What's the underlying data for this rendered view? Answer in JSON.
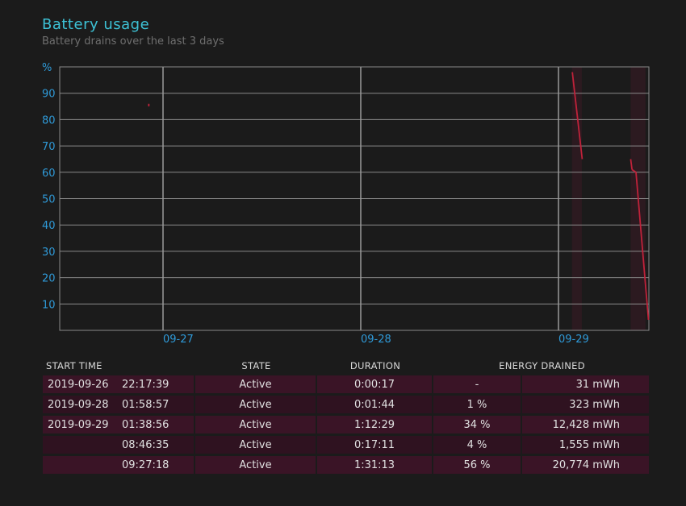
{
  "header": {
    "title": "Battery usage",
    "subtitle": "Battery drains over the last 3 days"
  },
  "chart_data": {
    "type": "line",
    "ylabel": "%",
    "yticks": [
      10,
      20,
      30,
      40,
      50,
      60,
      70,
      80,
      90
    ],
    "ylim": [
      0,
      100
    ],
    "xticks": [
      "09-27",
      "09-28",
      "09-29"
    ],
    "grid": true,
    "series_color": "#c0223a",
    "active_band_color": "#2c1a20",
    "segments": [
      {
        "start_day": -0.072,
        "end_day": -0.072,
        "values": [
          86,
          85
        ]
      },
      {
        "start_day": 2.07,
        "end_day": 2.12,
        "values": [
          98,
          65
        ]
      },
      {
        "start_day": 2.365,
        "end_day": 2.372,
        "values": [
          65,
          61
        ]
      },
      {
        "start_day": 2.372,
        "end_day": 2.392,
        "values": [
          61,
          60
        ]
      },
      {
        "start_day": 2.392,
        "end_day": 2.455,
        "values": [
          60,
          4
        ]
      }
    ],
    "active_bands": [
      {
        "start_day": 2.068,
        "end_day": 2.118
      },
      {
        "start_day": 2.365,
        "end_day": 2.44
      }
    ]
  },
  "table": {
    "headers": {
      "start_time": "START TIME",
      "state": "STATE",
      "duration": "DURATION",
      "energy_drained": "ENERGY DRAINED"
    },
    "rows": [
      {
        "date": "2019-09-26",
        "time": "22:17:39",
        "state": "Active",
        "duration": "0:00:17",
        "percent": "-",
        "mwh": "31 mWh"
      },
      {
        "date": "2019-09-28",
        "time": "01:58:57",
        "state": "Active",
        "duration": "0:01:44",
        "percent": "1 %",
        "mwh": "323 mWh"
      },
      {
        "date": "2019-09-29",
        "time": "01:38:56",
        "state": "Active",
        "duration": "1:12:29",
        "percent": "34 %",
        "mwh": "12,428 mWh"
      },
      {
        "date": "",
        "time": "08:46:35",
        "state": "Active",
        "duration": "0:17:11",
        "percent": "4 %",
        "mwh": "1,555 mWh"
      },
      {
        "date": "",
        "time": "09:27:18",
        "state": "Active",
        "duration": "1:31:13",
        "percent": "56 %",
        "mwh": "20,774 mWh"
      }
    ]
  }
}
